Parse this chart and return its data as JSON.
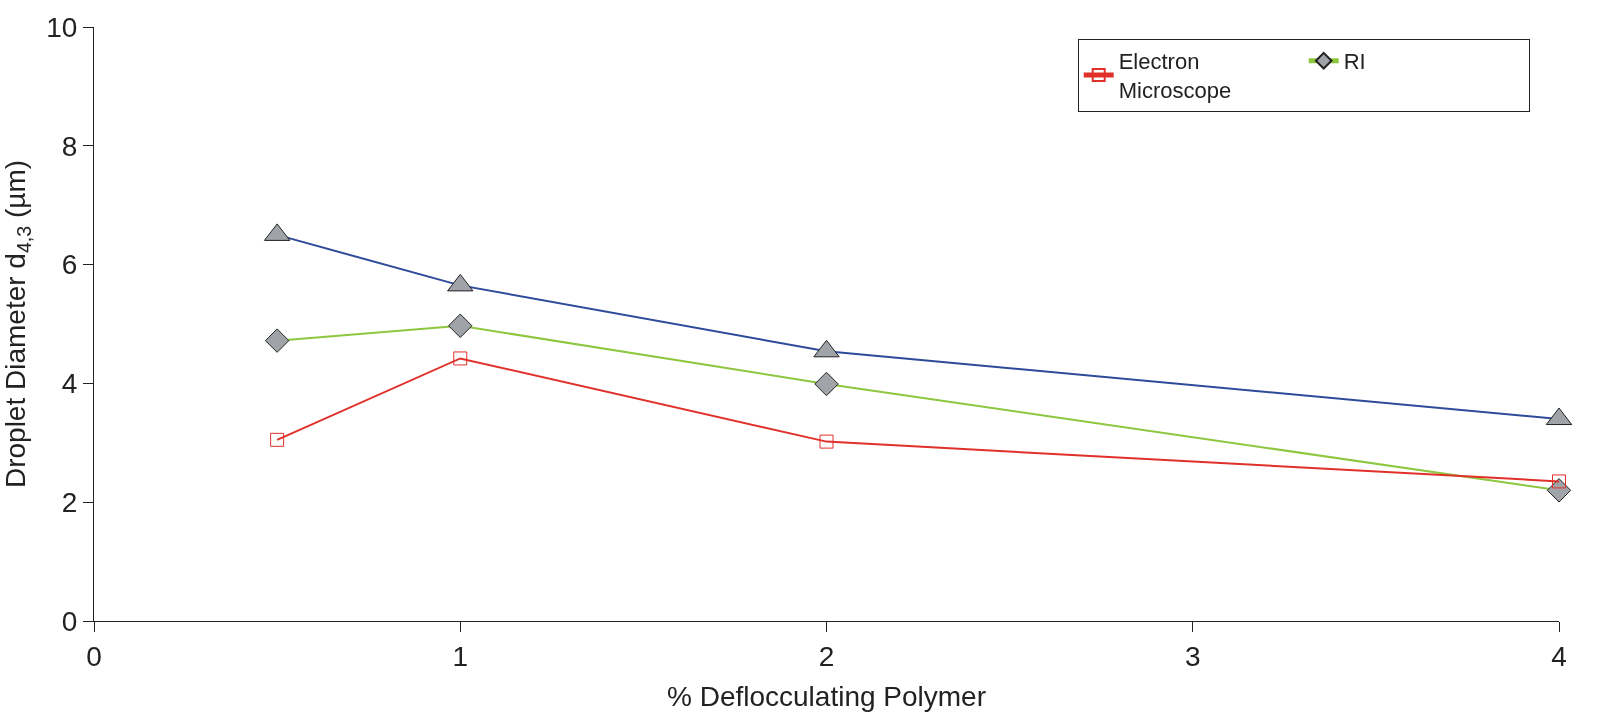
{
  "chart_data": {
    "type": "line",
    "xlabel": "% Deflocculating Polymer",
    "ylabel": "Droplet Diameter d$_{4,3}$ (µm)",
    "xlim": [
      0,
      4
    ],
    "xticks": [
      0,
      1,
      2,
      3,
      4
    ],
    "ylim": [
      0,
      10
    ],
    "yticks": [
      0,
      2,
      4,
      6,
      8,
      10
    ],
    "legend": "top right",
    "x": [
      0.5,
      1,
      2,
      4
    ],
    "series": [
      {
        "name": "Electron Microscope",
        "color": "#e0302a",
        "marker": "square",
        "values": [
          3.05,
          4.42,
          3.02,
          2.35
        ]
      },
      {
        "name": "RI",
        "color": "#8dc63f",
        "marker": "diamond",
        "values": [
          4.72,
          4.97,
          3.99,
          2.2
        ]
      },
      {
        "color": "#2e4a9a",
        "marker": "triangle",
        "values": [
          6.5,
          5.65,
          4.54,
          3.4
        ]
      }
    ]
  }
}
